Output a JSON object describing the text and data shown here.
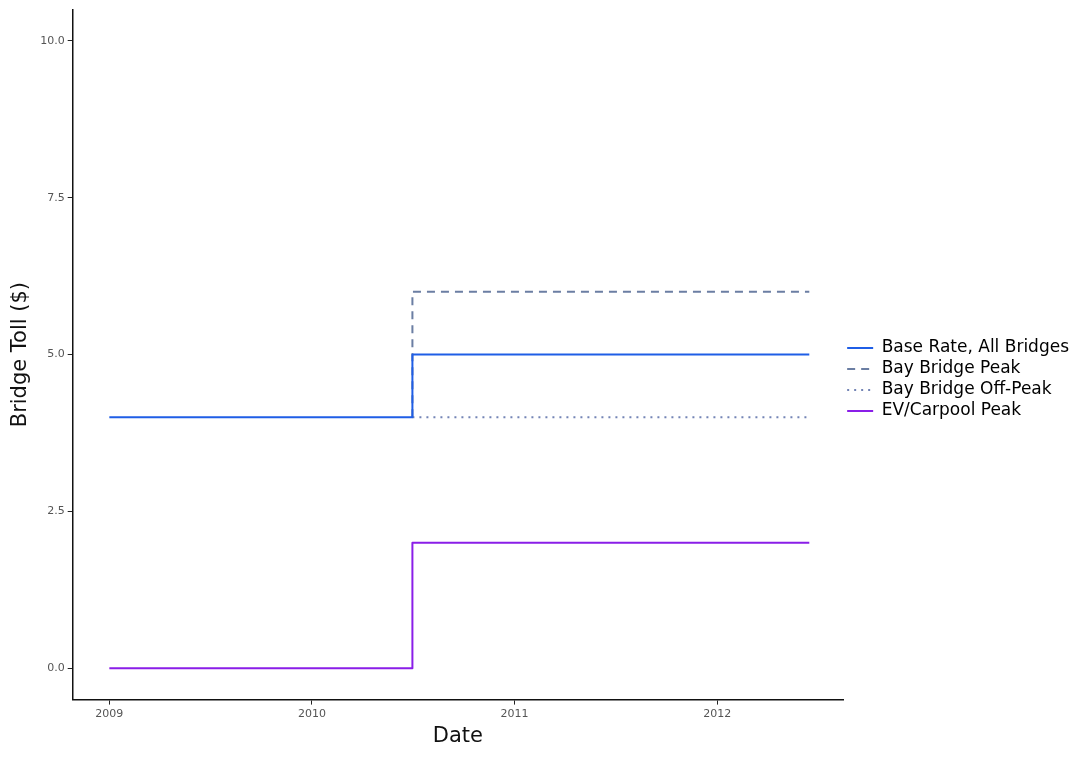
{
  "chart_data": {
    "type": "step",
    "xlabel": "Date",
    "ylabel": "Bridge Toll ($)",
    "xlim": [
      "2008-10-27",
      "2012-08-15"
    ],
    "xticks": [
      "2009",
      "2010",
      "2011",
      "2012"
    ],
    "ylim": [
      -0.5,
      10.5
    ],
    "yticks": [
      {
        "value": 0,
        "label": "0.0"
      },
      {
        "value": 2.5,
        "label": "2.5"
      },
      {
        "value": 5,
        "label": "5.0"
      },
      {
        "value": 7.5,
        "label": "7.5"
      },
      {
        "value": 10,
        "label": "10.0"
      }
    ],
    "grid": false,
    "legend": "right",
    "marker": "none",
    "series": [
      {
        "name": "Base Rate, All Bridges",
        "color": "#1f5ee6",
        "line_style": "solid",
        "x": [
          "2009-01-01",
          "2010-07-01",
          "2012-06-15"
        ],
        "values": [
          4,
          5,
          5
        ]
      },
      {
        "name": "Bay Bridge Peak",
        "color": "#6b7ea3",
        "line_style": "dashed",
        "x": [
          "2010-07-01",
          "2010-07-01",
          "2012-06-15"
        ],
        "values": [
          4,
          6,
          6
        ]
      },
      {
        "name": "Bay Bridge Off-Peak",
        "color": "#7384b5",
        "line_style": "dotted",
        "x": [
          "2010-07-01",
          "2012-06-15"
        ],
        "values": [
          4,
          4
        ]
      },
      {
        "name": "EV/Carpool Peak",
        "color": "#8a1ee8",
        "line_style": "solid",
        "x": [
          "2009-01-01",
          "2010-07-01",
          "2012-06-15"
        ],
        "values": [
          0,
          2,
          2
        ]
      }
    ]
  }
}
